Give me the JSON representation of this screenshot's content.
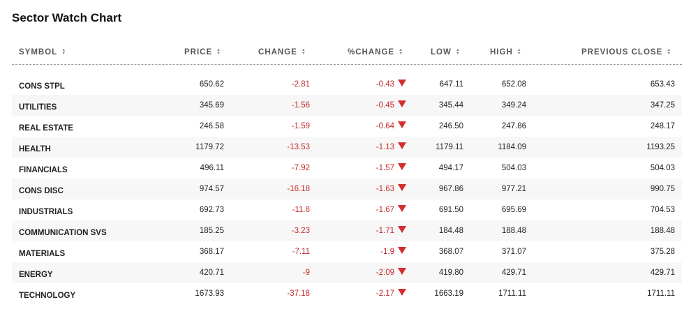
{
  "title": "Sector Watch Chart",
  "columns": {
    "symbol": "SYMBOL",
    "price": "PRICE",
    "change": "CHANGE",
    "pct_change": "%CHANGE",
    "low": "LOW",
    "high": "HIGH",
    "previous_close": "PREVIOUS CLOSE"
  },
  "sort_icon": "sort-up-down-icon",
  "down_icon": "triangle-down-icon",
  "colors": {
    "negative": "#c62828",
    "arrow_down": "#d32f2f"
  },
  "rows": [
    {
      "symbol": "CONS STPL",
      "price": "650.62",
      "change": "-2.81",
      "pct_change": "-0.43",
      "low": "647.11",
      "high": "652.08",
      "previous_close": "653.43"
    },
    {
      "symbol": "UTILITIES",
      "price": "345.69",
      "change": "-1.56",
      "pct_change": "-0.45",
      "low": "345.44",
      "high": "349.24",
      "previous_close": "347.25"
    },
    {
      "symbol": "REAL ESTATE",
      "price": "246.58",
      "change": "-1.59",
      "pct_change": "-0.64",
      "low": "246.50",
      "high": "247.86",
      "previous_close": "248.17"
    },
    {
      "symbol": "HEALTH",
      "price": "1179.72",
      "change": "-13.53",
      "pct_change": "-1.13",
      "low": "1179.11",
      "high": "1184.09",
      "previous_close": "1193.25"
    },
    {
      "symbol": "FINANCIALS",
      "price": "496.11",
      "change": "-7.92",
      "pct_change": "-1.57",
      "low": "494.17",
      "high": "504.03",
      "previous_close": "504.03"
    },
    {
      "symbol": "CONS DISC",
      "price": "974.57",
      "change": "-16.18",
      "pct_change": "-1.63",
      "low": "967.86",
      "high": "977.21",
      "previous_close": "990.75"
    },
    {
      "symbol": "INDUSTRIALS",
      "price": "692.73",
      "change": "-11.8",
      "pct_change": "-1.67",
      "low": "691.50",
      "high": "695.69",
      "previous_close": "704.53"
    },
    {
      "symbol": "COMMUNICATION SVS",
      "price": "185.25",
      "change": "-3.23",
      "pct_change": "-1.71",
      "low": "184.48",
      "high": "188.48",
      "previous_close": "188.48"
    },
    {
      "symbol": "MATERIALS",
      "price": "368.17",
      "change": "-7.11",
      "pct_change": "-1.9",
      "low": "368.07",
      "high": "371.07",
      "previous_close": "375.28"
    },
    {
      "symbol": "ENERGY",
      "price": "420.71",
      "change": "-9",
      "pct_change": "-2.09",
      "low": "419.80",
      "high": "429.71",
      "previous_close": "429.71"
    },
    {
      "symbol": "TECHNOLOGY",
      "price": "1673.93",
      "change": "-37.18",
      "pct_change": "-2.17",
      "low": "1663.19",
      "high": "1711.11",
      "previous_close": "1711.11"
    }
  ]
}
